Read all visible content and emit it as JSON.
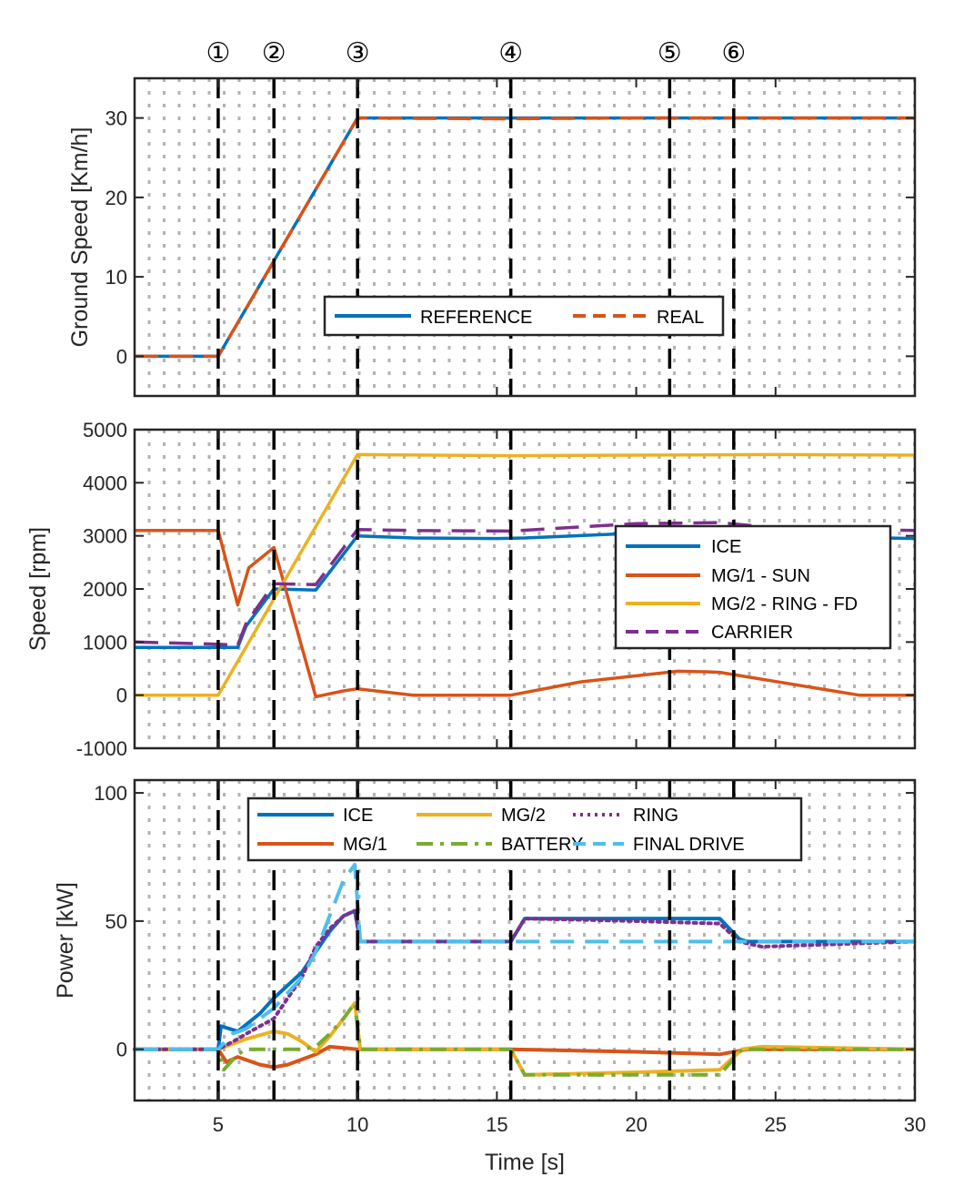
{
  "events": [
    "①",
    "②",
    "③",
    "④",
    "⑤",
    "⑥"
  ],
  "event_times": [
    5,
    7,
    10,
    15.5,
    21.2,
    23.5
  ],
  "chart_data": [
    {
      "type": "line",
      "id": "ground-speed",
      "ylabel": "Ground Speed [Km/h]",
      "xlim": [
        2,
        30
      ],
      "ylim": [
        -5,
        35
      ],
      "yticks": [
        0,
        10,
        20,
        30
      ],
      "yticklabels": [
        "0",
        "10",
        "20",
        "30"
      ],
      "xticks": [
        5,
        10,
        15,
        20,
        25,
        30
      ],
      "series": [
        {
          "name": "REFERENCE",
          "color": "#0072BD",
          "style": "solid",
          "x": [
            2,
            5,
            10,
            30
          ],
          "y": [
            0,
            0,
            30,
            30
          ]
        },
        {
          "name": "REAL",
          "color": "#D95319",
          "style": "dashed",
          "x": [
            2,
            5,
            10,
            15,
            20,
            25,
            30
          ],
          "y": [
            0,
            0,
            30,
            29.9,
            30,
            30,
            30
          ]
        }
      ]
    },
    {
      "type": "line",
      "id": "speed",
      "ylabel": "Speed [rpm]",
      "xlim": [
        2,
        30
      ],
      "ylim": [
        -1000,
        5000
      ],
      "yticks": [
        -1000,
        0,
        1000,
        2000,
        3000,
        4000,
        5000
      ],
      "yticklabels": [
        "-1000",
        "0",
        "1000",
        "2000",
        "3000",
        "4000",
        "5000"
      ],
      "xticks": [
        5,
        10,
        15,
        20,
        25,
        30
      ],
      "series": [
        {
          "name": "ICE",
          "color": "#0072BD",
          "style": "solid",
          "x": [
            2,
            5,
            5.7,
            6,
            7,
            8.5,
            10,
            12,
            15,
            16,
            20,
            23,
            25,
            30
          ],
          "y": [
            900,
            900,
            900,
            1300,
            2000,
            1980,
            3000,
            2960,
            2950,
            2960,
            3050,
            3060,
            3000,
            2950
          ]
        },
        {
          "name": "MG/1 - SUN",
          "color": "#D95319",
          "style": "solid",
          "x": [
            2,
            5,
            5.7,
            6.1,
            7,
            8.5,
            9.5,
            10,
            12,
            15.5,
            18,
            21.5,
            22.5,
            23,
            28,
            30
          ],
          "y": [
            3100,
            3100,
            1700,
            2400,
            2780,
            -30,
            80,
            120,
            0,
            0,
            250,
            450,
            440,
            430,
            0,
            0
          ]
        },
        {
          "name": "MG/2 - RING - FD",
          "color": "#EDB120",
          "style": "solid",
          "x": [
            2,
            5,
            10,
            15.5,
            20,
            25,
            30
          ],
          "y": [
            0,
            0,
            4530,
            4510,
            4520,
            4530,
            4520
          ]
        },
        {
          "name": "CARRIER",
          "color": "#7E2F8E",
          "style": "dashed",
          "x": [
            2,
            5,
            5.7,
            6,
            7,
            8.5,
            10,
            12,
            15.5,
            20,
            23,
            25,
            30
          ],
          "y": [
            1000,
            960,
            940,
            1350,
            2100,
            2080,
            3120,
            3100,
            3090,
            3230,
            3250,
            3150,
            3100
          ]
        }
      ],
      "legend": {
        "placement": "right"
      }
    },
    {
      "type": "line",
      "id": "power",
      "ylabel": "Power [kW]",
      "xlabel": "Time [s]",
      "xlim": [
        2,
        30
      ],
      "ylim": [
        -20,
        105
      ],
      "yticks": [
        0,
        50,
        100
      ],
      "yticklabels": [
        "0",
        "50",
        "100"
      ],
      "xticks": [
        5,
        10,
        15,
        20,
        25,
        30
      ],
      "xticklabels": [
        "5",
        "10",
        "15",
        "20",
        "25",
        "30"
      ],
      "series": [
        {
          "name": "ICE",
          "color": "#0072BD",
          "style": "solid",
          "width": 4,
          "x": [
            2,
            5,
            5.1,
            5.7,
            6.5,
            7,
            8,
            8.5,
            9,
            9.5,
            9.9,
            10.1,
            12,
            15.5,
            16,
            23,
            23.7,
            24,
            30
          ],
          "y": [
            0,
            0,
            9,
            7,
            14,
            20,
            30,
            38,
            46,
            52,
            54,
            42,
            42,
            42,
            51,
            51,
            43,
            42,
            42
          ]
        },
        {
          "name": "MG/1",
          "color": "#D95319",
          "style": "solid",
          "width": 4,
          "x": [
            2,
            5,
            5.3,
            5.7,
            6.5,
            7,
            7.5,
            8,
            8.5,
            9,
            10,
            15.5,
            20,
            23,
            24,
            30
          ],
          "y": [
            0,
            0,
            -5,
            -3,
            -6,
            -7,
            -6,
            -4,
            -2,
            1,
            0,
            0,
            -1,
            -2,
            0,
            0
          ]
        },
        {
          "name": "MG/2",
          "color": "#EDB120",
          "style": "solid",
          "width": 4,
          "x": [
            2,
            5,
            5.5,
            6,
            7,
            7.5,
            8,
            8.5,
            9,
            9.5,
            9.9,
            10.1,
            15.5,
            16,
            20,
            23,
            23.8,
            24.5,
            30
          ],
          "y": [
            0,
            0,
            2,
            4,
            7,
            6,
            3,
            -1,
            5,
            12,
            18,
            0,
            0,
            -10,
            -9,
            -8,
            0,
            1,
            0
          ]
        },
        {
          "name": "BATTERY",
          "color": "#77AC30",
          "style": "dashdot",
          "width": 4,
          "x": [
            2,
            5,
            5.2,
            5.7,
            6,
            7,
            8,
            8.5,
            9,
            9.5,
            9.9,
            10.1,
            15.5,
            16,
            20,
            23,
            23.8,
            30
          ],
          "y": [
            0,
            0,
            -8,
            -2,
            0,
            0,
            0,
            1,
            6,
            12,
            18,
            0,
            0,
            -10,
            -10,
            -10,
            0,
            0
          ]
        },
        {
          "name": "RING",
          "color": "#7E2F8E",
          "style": "dotted",
          "width": 4,
          "x": [
            2,
            5,
            5.7,
            6,
            7,
            8,
            8.5,
            9,
            9.5,
            9.9,
            10.1,
            12,
            15.5,
            16,
            20,
            23,
            23.7,
            24.5,
            30
          ],
          "y": [
            0,
            0,
            4,
            6,
            12,
            28,
            40,
            47,
            52,
            54,
            42,
            42,
            42,
            51,
            50,
            49,
            42,
            40,
            42
          ]
        },
        {
          "name": "FINAL DRIVE",
          "color": "#4DBEEE",
          "style": "dashed",
          "width": 4,
          "x": [
            2,
            5,
            5.5,
            6,
            7,
            8,
            8.5,
            9,
            9.5,
            9.9,
            10.1,
            15,
            20,
            25,
            30
          ],
          "y": [
            0,
            0,
            6,
            8,
            16,
            28,
            38,
            52,
            66,
            72,
            42,
            42,
            42,
            42,
            42
          ]
        }
      ],
      "legend": {
        "placement": "top",
        "columns": 3
      }
    }
  ]
}
